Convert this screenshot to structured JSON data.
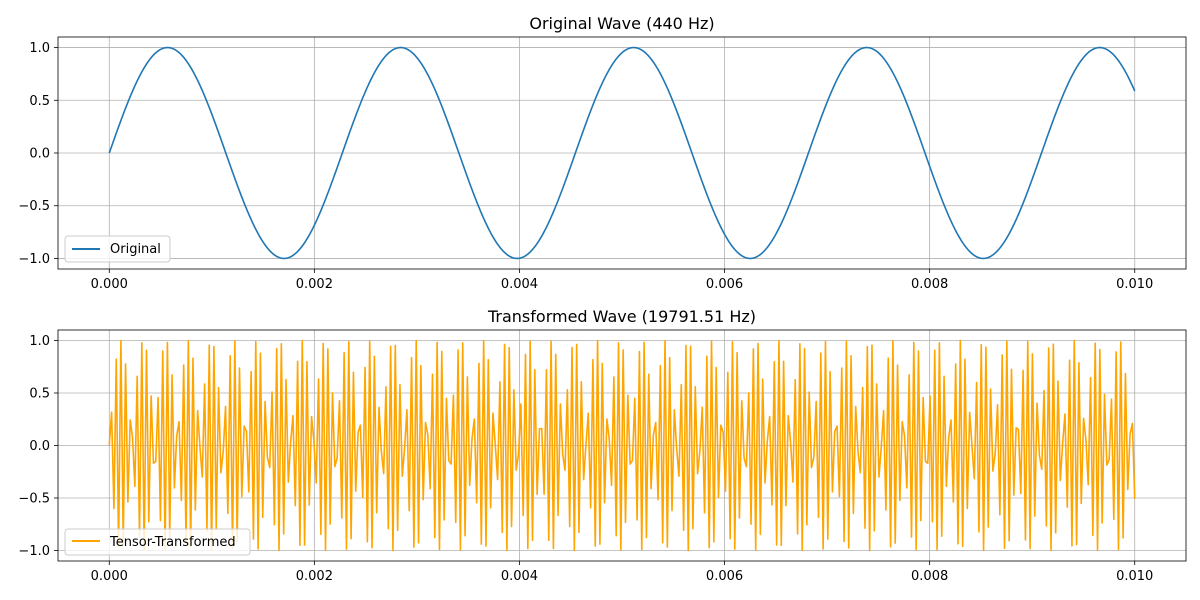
{
  "chart_data": [
    {
      "type": "line",
      "title": "Original Wave (440 Hz)",
      "xlabel": "",
      "ylabel": "",
      "xlim": [
        -0.0005,
        0.0105
      ],
      "ylim": [
        -1.1,
        1.1
      ],
      "xticks": [
        "0.000",
        "0.002",
        "0.004",
        "0.006",
        "0.008",
        "0.010"
      ],
      "yticks": [
        "1.0",
        "0.5",
        "0.0",
        "−0.5",
        "−1.0"
      ],
      "grid": true,
      "legend_position": "lower-left",
      "series": [
        {
          "name": "Original",
          "color": "#1f77b4",
          "x_range": [
            0,
            0.01
          ],
          "frequency_hz": 440,
          "amplitude": 1.0
        }
      ]
    },
    {
      "type": "line",
      "title": "Transformed Wave (19791.51 Hz)",
      "xlabel": "",
      "ylabel": "",
      "xlim": [
        -0.0005,
        0.0105
      ],
      "ylim": [
        -1.1,
        1.1
      ],
      "xticks": [
        "0.000",
        "0.002",
        "0.004",
        "0.006",
        "0.008",
        "0.010"
      ],
      "yticks": [
        "1.0",
        "0.5",
        "0.0",
        "−0.5",
        "−1.0"
      ],
      "grid": true,
      "legend_position": "lower-left",
      "series": [
        {
          "name": "Tensor-Transformed",
          "color": "#ffa500",
          "x_range": [
            0,
            0.01
          ],
          "frequency_hz": 19791.51,
          "amplitude": 1.0
        }
      ]
    }
  ]
}
